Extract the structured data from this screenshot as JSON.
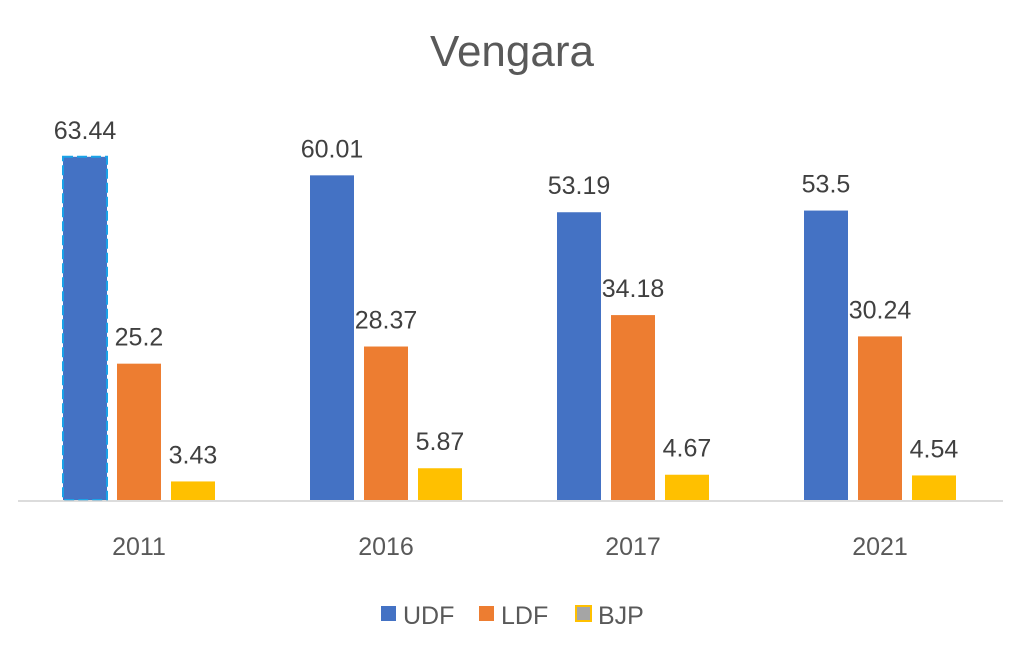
{
  "chart_data": {
    "type": "bar",
    "title": "Vengara",
    "xlabel": "",
    "ylabel": "",
    "categories": [
      "2011",
      "2016",
      "2017",
      "2021"
    ],
    "series": [
      {
        "name": "UDF",
        "values": [
          63.44,
          60.01,
          53.19,
          53.5
        ],
        "labels": [
          "63.44",
          "60.01",
          "53.19",
          "53.5"
        ],
        "color": "#4472C4"
      },
      {
        "name": "LDF",
        "values": [
          25.2,
          28.37,
          34.18,
          30.24
        ],
        "labels": [
          "25.2",
          "28.37",
          "34.18",
          "30.24"
        ],
        "color": "#ED7D31"
      },
      {
        "name": "BJP",
        "values": [
          3.43,
          5.87,
          4.67,
          4.54
        ],
        "labels": [
          "3.43",
          "5.87",
          "4.67",
          "4.54"
        ],
        "color": "#FFC000"
      }
    ],
    "ylim": [
      0,
      63.44
    ],
    "grid": false,
    "legend_position": "bottom",
    "data_labels": true
  }
}
